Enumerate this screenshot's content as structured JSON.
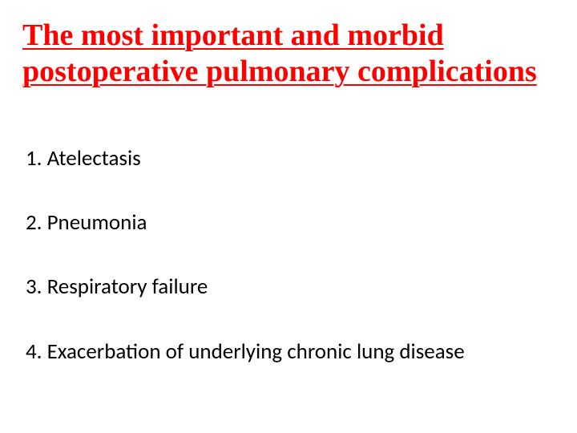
{
  "title_color": "#ff0000",
  "body_color": "#000000",
  "background_color": "#ffffff",
  "title": "The most important and morbid postoperative pulmonary complications",
  "title_font": "Times New Roman",
  "title_fontsize": 38,
  "title_fontweight": 700,
  "title_underline": true,
  "body_font": "Calibri",
  "body_fontsize": 27,
  "items": [
    {
      "text": "1. Atelectasis"
    },
    {
      "text": "2. Pneumonia"
    },
    {
      "text": "3. Respiratory failure"
    },
    {
      "text": "4. Exacerbation of underlying chronic lung disease"
    }
  ]
}
